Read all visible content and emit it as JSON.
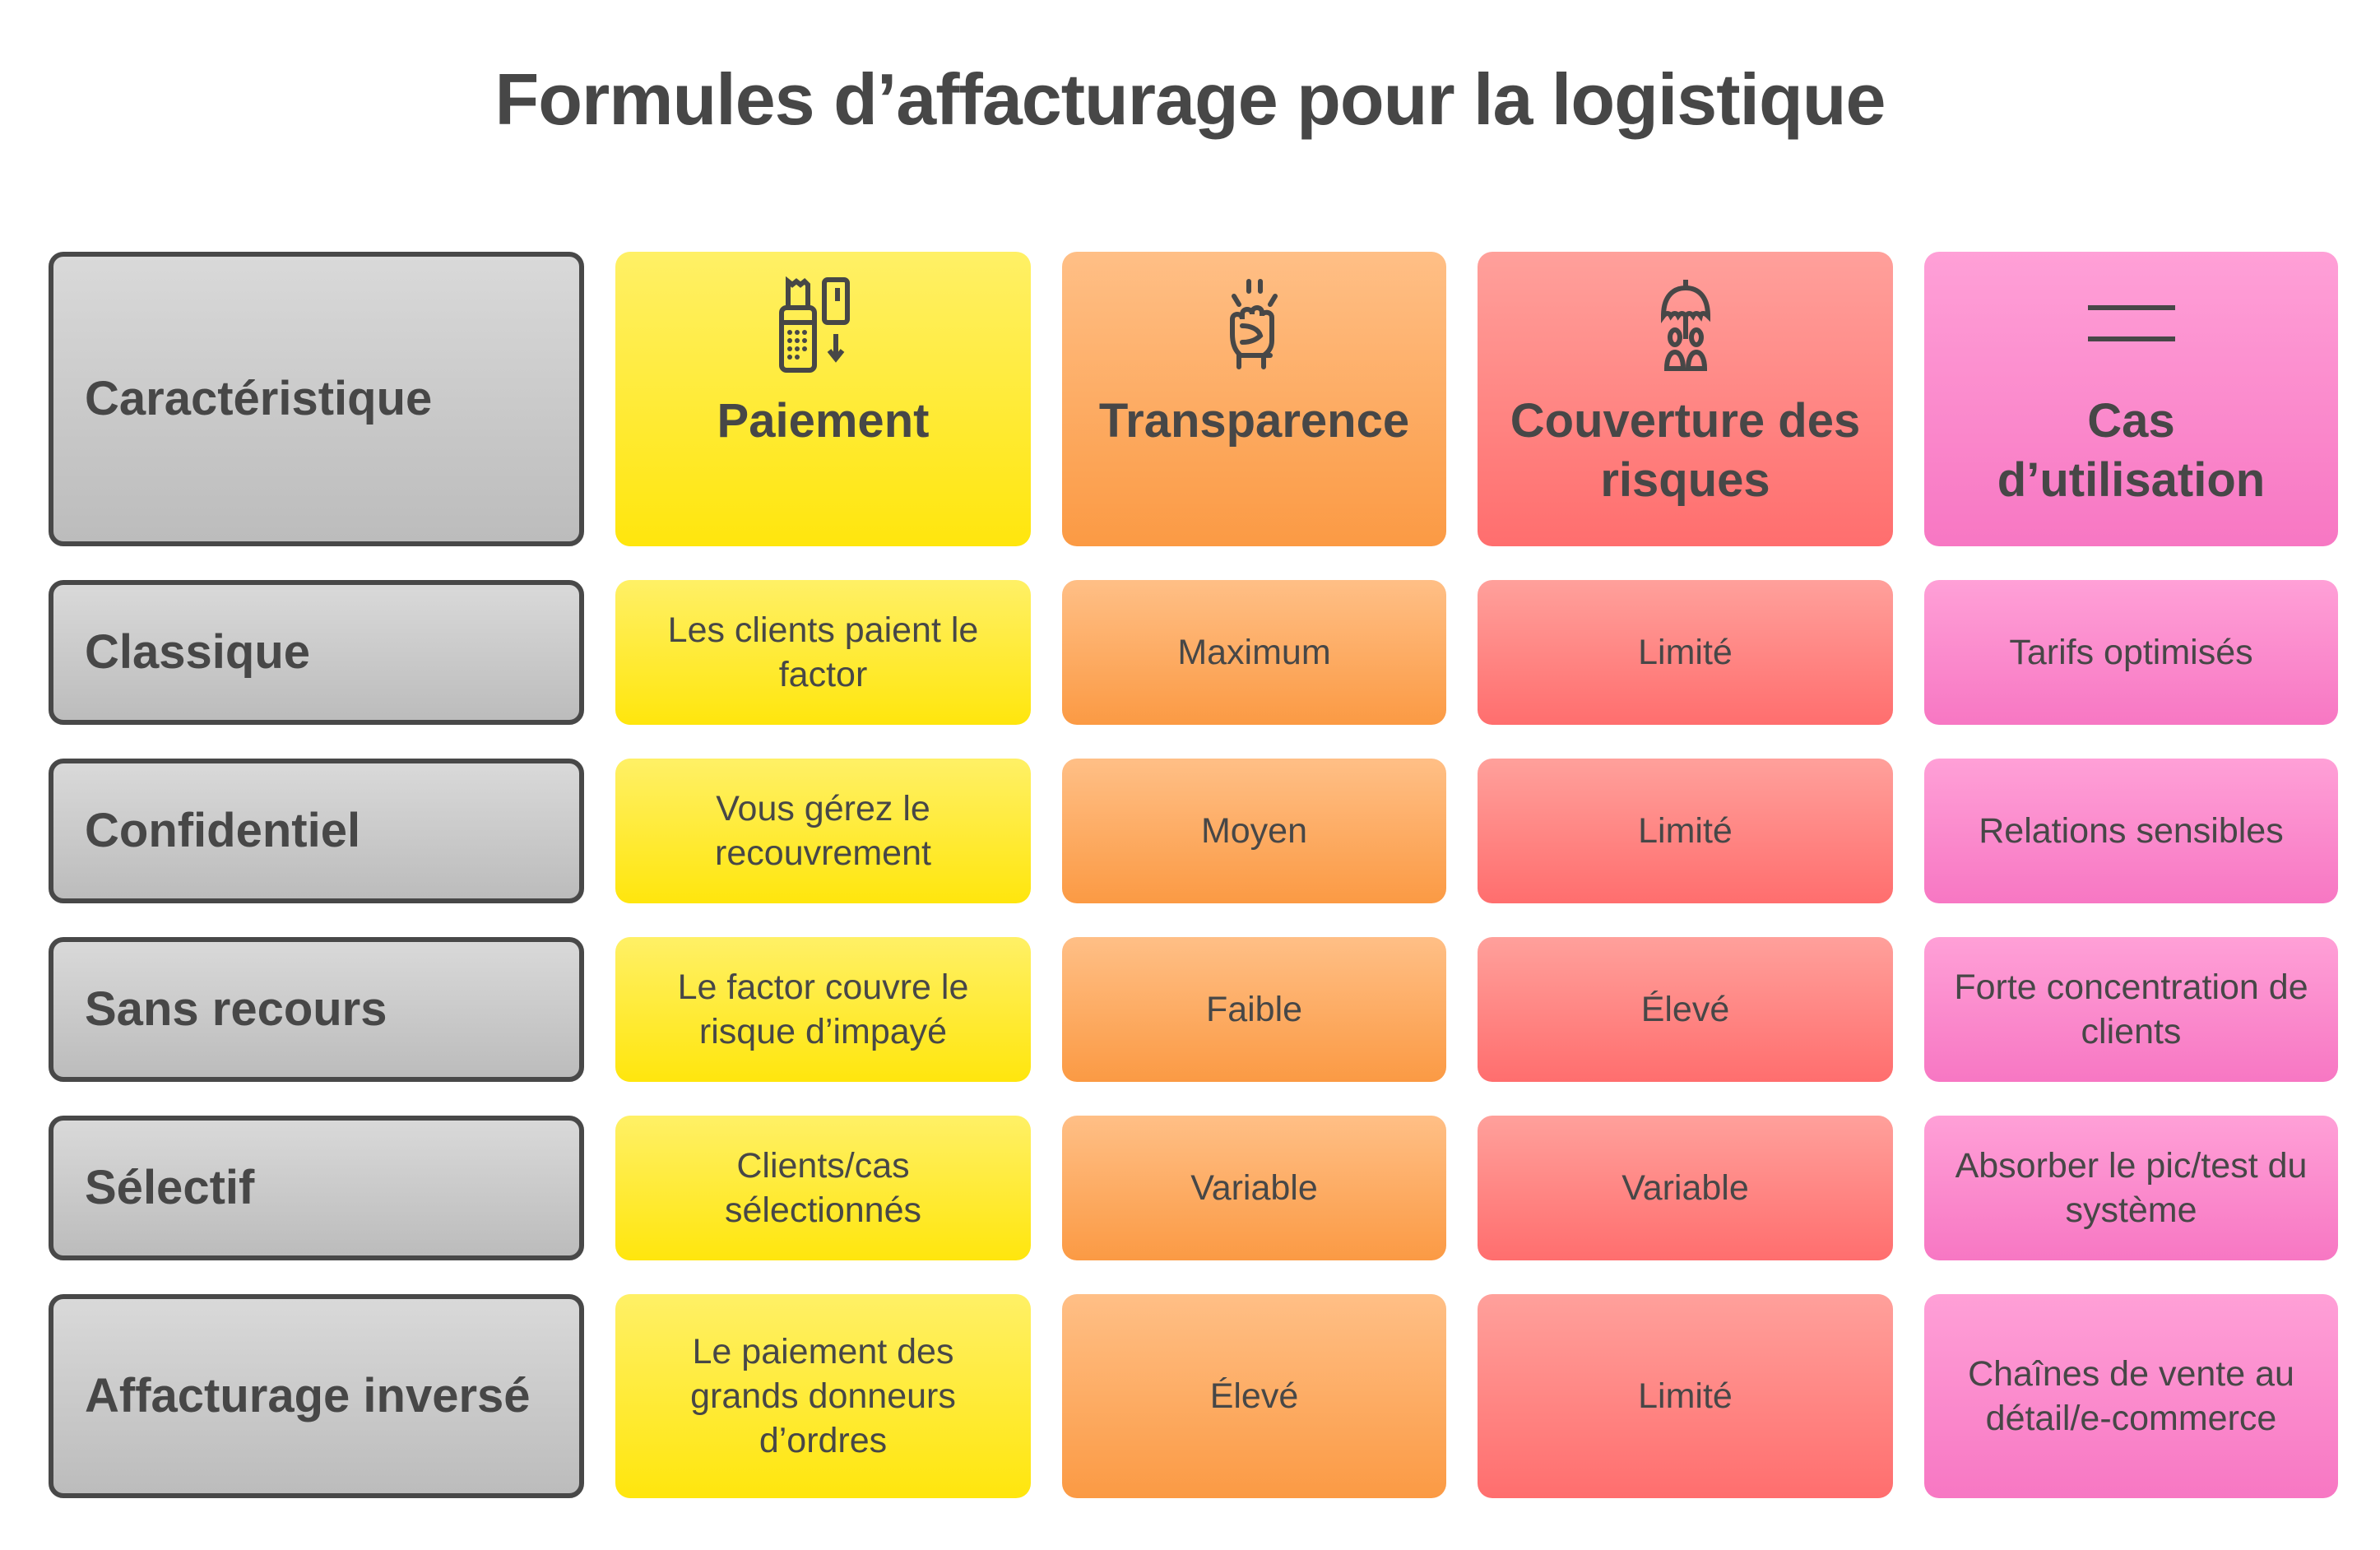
{
  "title": "Formules d’affacturage pour la logistique",
  "header": {
    "corner": "Caractéristique",
    "columns": [
      {
        "label": "Paiement",
        "icon": "payment-terminal-icon"
      },
      {
        "label": "Transparence",
        "icon": "raised-fist-icon"
      },
      {
        "label": "Couverture des risques",
        "icon": "umbrella-people-icon"
      },
      {
        "label": "Cas d’utilisation",
        "icon": "equals-lines-icon"
      }
    ]
  },
  "rows": [
    {
      "label": "Classique",
      "cells": [
        "Les clients paient le factor",
        "Maximum",
        "Limité",
        "Tarifs optimisés"
      ]
    },
    {
      "label": "Confidentiel",
      "cells": [
        "Vous gérez le recouvrement",
        "Moyen",
        "Limité",
        "Relations sensibles"
      ]
    },
    {
      "label": "Sans recours",
      "cells": [
        "Le factor couvre le risque d’impayé",
        "Faible",
        "Élevé",
        "Forte concentration de clients"
      ]
    },
    {
      "label": "Sélectif",
      "cells": [
        "Clients/cas sélectionnés",
        "Variable",
        "Variable",
        "Absorber le pic/test du système"
      ]
    },
    {
      "label": "Affacturage inversé",
      "cells": [
        "Le paiement des grands donneurs d’ordres",
        "Élevé",
        "Limité",
        "Chaînes de vente au détail/e-commerce"
      ]
    }
  ],
  "colors": {
    "gray": "#c9c9c9",
    "yellow": "#ffe60d",
    "orange": "#fb9a44",
    "red": "#ff6e6e",
    "pink": "#f777c3",
    "text": "#474747"
  }
}
